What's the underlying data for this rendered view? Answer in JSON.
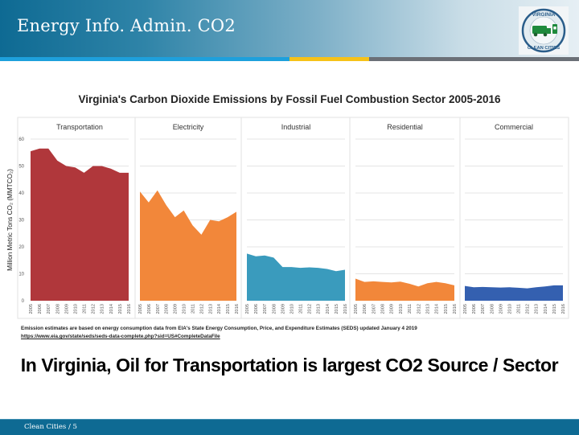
{
  "header": {
    "title": "Energy Info. Admin. CO2",
    "logo_text_top": "VIRGINIA",
    "logo_text_bottom": "CLEAN CITIES"
  },
  "chart_data": {
    "type": "area",
    "title": "Virginia's Carbon Dioxide Emissions by Fossil Fuel Combustion Sector 2005-2016",
    "ylabel": "Million Metric Tons CO₂ (MMTCO₂)",
    "xlabel": "",
    "ylim": [
      0,
      60
    ],
    "yticks": [
      0,
      10,
      20,
      30,
      40,
      50,
      60
    ],
    "grid": true,
    "x": [
      "2005",
      "2006",
      "2007",
      "2008",
      "2009",
      "2010",
      "2011",
      "2012",
      "2013",
      "2014",
      "2015",
      "2016"
    ],
    "series": [
      {
        "name": "Transportation",
        "color": "#b0373b",
        "values": [
          55.5,
          56.5,
          56.5,
          52,
          50,
          49.5,
          47.5,
          50,
          50,
          49,
          47.5,
          47.5
        ]
      },
      {
        "name": "Electricity",
        "color": "#f2873a",
        "values": [
          40.5,
          36.5,
          41,
          35.5,
          31,
          33.5,
          28,
          24.5,
          30,
          29.5,
          31,
          33
        ]
      },
      {
        "name": "Industrial",
        "color": "#3a9bbd",
        "values": [
          17.5,
          16.5,
          16.8,
          16,
          12.5,
          12.5,
          12.2,
          12.4,
          12.2,
          11.8,
          11,
          11.5
        ]
      },
      {
        "name": "Residential",
        "color": "#f2873a",
        "values": [
          8.2,
          7,
          7.2,
          7,
          6.8,
          7.1,
          6.3,
          5.3,
          6.5,
          7,
          6.5,
          5.7
        ]
      },
      {
        "name": "Commercial",
        "color": "#3460b0",
        "values": [
          5.5,
          5,
          5.1,
          5,
          4.9,
          5,
          4.8,
          4.6,
          5,
          5.3,
          5.7,
          5.7
        ]
      }
    ]
  },
  "notes": {
    "source": "Emission estimates are based on energy consumption data from EIA's State Energy Consumption, Price, and Expenditure Estimates (SEDS) updated January 4 2019",
    "link": "https://www.eia.gov/state/seds/seds-data-complete.php?sid=US#CompleteDataFile"
  },
  "headline": "In Virginia, Oil for Transportation is largest CO2 Source / Sector",
  "footer": {
    "text": "Clean Cities  /  5"
  }
}
